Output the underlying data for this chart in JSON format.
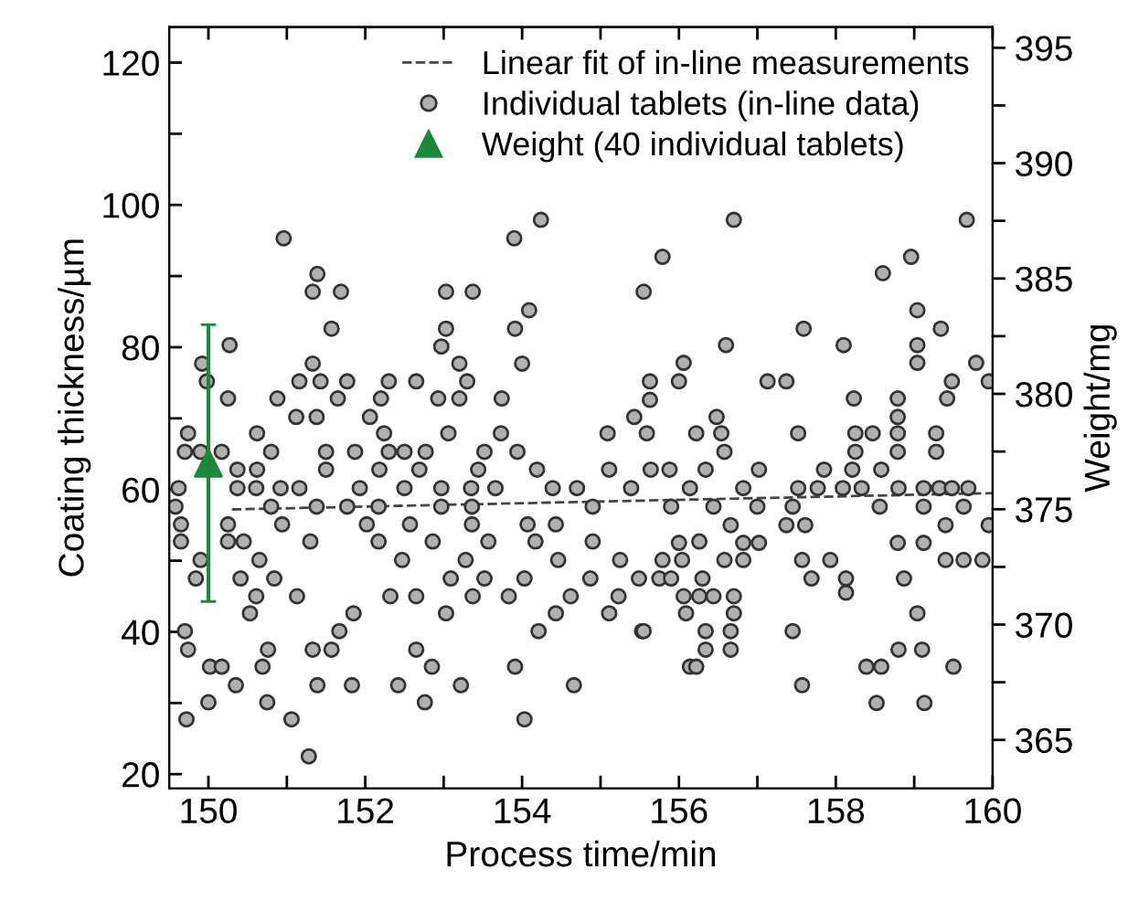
{
  "chart_data": {
    "type": "scatter",
    "xlabel": "Process time/min",
    "ylabel": "Coating thickness/µm",
    "y2label": "Weight/mg",
    "xlim": [
      149.5,
      160
    ],
    "ylim": [
      18,
      125
    ],
    "y2lim": [
      362.9,
      395.9
    ],
    "xticks": [
      150,
      {
        "value": 151,
        "label": null
      },
      152,
      {
        "value": 153,
        "label": null
      },
      154,
      {
        "value": 155,
        "label": null
      },
      156,
      {
        "value": 157,
        "label": null
      },
      158,
      {
        "value": 159,
        "label": null
      },
      160
    ],
    "yticks": [
      20,
      {
        "value": 30,
        "label": null
      },
      40,
      {
        "value": 50,
        "label": null
      },
      60,
      {
        "value": 70,
        "label": null
      },
      80,
      {
        "value": 90,
        "label": null
      },
      100,
      {
        "value": 110,
        "label": null
      },
      120
    ],
    "y2ticks": [
      365,
      {
        "value": 367.5,
        "label": null
      },
      370,
      {
        "value": 372.5,
        "label": null
      },
      375,
      {
        "value": 377.5,
        "label": null
      },
      380,
      {
        "value": 382.5,
        "label": null
      },
      385,
      {
        "value": 387.5,
        "label": null
      },
      390,
      {
        "value": 392.5,
        "label": null
      },
      395
    ],
    "grid": false,
    "legend": "top right",
    "series": [
      {
        "name": "Linear fit of in-line measurements",
        "type": "line",
        "line_style": "dashed",
        "marker": "none",
        "color": "#444444",
        "x": [
          150.3,
          160
        ],
        "values": [
          57.2,
          59.5
        ]
      },
      {
        "name": "Individual tablets (in-line data)",
        "marker": "circle",
        "color": "#b0b0b0",
        "x": [
          150.96,
          154.24,
          153.9,
          151.39,
          151.33,
          151.69,
          153.03,
          153.37,
          154.09,
          151.57,
          153.03,
          153.91,
          152.97,
          150.27,
          149.92,
          149.98,
          153.2,
          154.0,
          151.33,
          151.16,
          151.43,
          151.77,
          152.3,
          152.65,
          153.3,
          150.25,
          150.88,
          151.65,
          152.2,
          152.93,
          153.2,
          153.74,
          151.12,
          151.38,
          152.06,
          149.74,
          150.62,
          152.24,
          153.06,
          153.73,
          155.09,
          149.7,
          149.9,
          150.17,
          150.8,
          151.5,
          151.87,
          152.3,
          152.5,
          152.77,
          153.52,
          153.94,
          150.37,
          150.62,
          151.5,
          152.18,
          152.69,
          153.44,
          154.19,
          155.11,
          149.62,
          150.37,
          150.61,
          150.92,
          151.16,
          151.93,
          152.5,
          152.97,
          153.35,
          153.66,
          154.39,
          154.7,
          155.39,
          149.58,
          150.8,
          151.38,
          151.77,
          152.17,
          152.97,
          153.36,
          154.9,
          149.65,
          150.25,
          150.94,
          152.02,
          152.57,
          153.36,
          154.07,
          154.43,
          149.65,
          150.25,
          150.45,
          151.3,
          152.17,
          152.86,
          153.57,
          154.17,
          154.9,
          149.9,
          150.65,
          152.47,
          153.28,
          154.46,
          155.25,
          149.84,
          150.41,
          150.84,
          153.09,
          153.52,
          154.03,
          154.87,
          155.49,
          150.61,
          151.13,
          152.32,
          152.65,
          153.37,
          153.83,
          154.62,
          155.23,
          150.53,
          151.85,
          153.03,
          154.43,
          155.11,
          151.67,
          149.7,
          154.21,
          155.53,
          149.74,
          150.76,
          151.33,
          151.57,
          152.65,
          150.02,
          150.17,
          150.69,
          152.85,
          153.91,
          150.35,
          151.39,
          151.83,
          152.42,
          153.22,
          154.66,
          150.0,
          150.75,
          152.76,
          149.72,
          151.06,
          154.03,
          151.28,
          156.7,
          159.67,
          155.79,
          158.96,
          155.55,
          158.6,
          159.04,
          157.59,
          159.34,
          156.6,
          158.1,
          159.04,
          159.04,
          156.06,
          159.79,
          157.13,
          157.37,
          155.63,
          159.48,
          159.95,
          156.0,
          155.63,
          158.23,
          158.79,
          159.42,
          155.43,
          156.48,
          158.79,
          155.59,
          156.22,
          156.54,
          157.52,
          158.25,
          158.47,
          158.79,
          159.28,
          156.58,
          158.25,
          158.79,
          159.28,
          155.64,
          155.88,
          156.34,
          157.02,
          157.85,
          158.21,
          158.58,
          159.69,
          156.14,
          156.82,
          157.52,
          157.77,
          158.09,
          158.33,
          158.8,
          159.12,
          159.32,
          159.48,
          155.9,
          156.44,
          157.0,
          157.45,
          158.56,
          159.12,
          159.63,
          156.66,
          157.37,
          157.61,
          159.4,
          159.95,
          156.0,
          156.82,
          157.02,
          158.79,
          159.12,
          155.79,
          156.04,
          156.26,
          156.58,
          156.82,
          157.57,
          157.93,
          159.4,
          159.63,
          159.87,
          155.75,
          155.9,
          156.3,
          157.69,
          158.13,
          158.87,
          156.06,
          156.26,
          156.44,
          156.7,
          158.13,
          156.09,
          156.7,
          159.04,
          155.55,
          156.34,
          156.66,
          157.45,
          156.34,
          156.66,
          158.8,
          159.1,
          156.14,
          156.22,
          158.39,
          158.58,
          159.5,
          157.57,
          158.52,
          159.13
        ],
        "values": [
          95.3,
          97.9,
          95.3,
          90.3,
          87.8,
          87.8,
          87.8,
          87.8,
          85.2,
          82.6,
          82.6,
          82.6,
          80.1,
          80.3,
          77.7,
          75.2,
          77.7,
          77.7,
          77.7,
          75.2,
          75.2,
          75.2,
          75.2,
          75.2,
          75.2,
          72.8,
          72.8,
          72.8,
          72.8,
          72.8,
          72.8,
          72.8,
          70.2,
          70.2,
          70.2,
          67.9,
          67.9,
          67.9,
          67.9,
          67.9,
          67.9,
          65.3,
          65.3,
          65.3,
          65.3,
          65.3,
          65.3,
          65.3,
          65.3,
          65.3,
          65.3,
          65.3,
          62.8,
          62.8,
          62.8,
          62.8,
          62.8,
          62.8,
          62.8,
          62.8,
          60.2,
          60.2,
          60.2,
          60.2,
          60.2,
          60.2,
          60.2,
          60.2,
          60.2,
          60.2,
          60.2,
          60.2,
          60.2,
          57.6,
          57.6,
          57.6,
          57.6,
          57.6,
          57.6,
          57.6,
          57.6,
          55.1,
          55.1,
          55.1,
          55.1,
          55.1,
          55.1,
          55.1,
          55.1,
          52.7,
          52.7,
          52.7,
          52.7,
          52.7,
          52.7,
          52.7,
          52.7,
          52.7,
          50.1,
          50.1,
          50.1,
          50.1,
          50.1,
          50.1,
          47.5,
          47.5,
          47.5,
          47.5,
          47.5,
          47.5,
          47.5,
          47.5,
          45.0,
          45.0,
          45.0,
          45.0,
          45.0,
          45.0,
          45.0,
          45.0,
          42.6,
          42.6,
          42.6,
          42.6,
          42.6,
          40.1,
          40.1,
          40.1,
          40.1,
          37.5,
          37.5,
          37.5,
          37.5,
          37.5,
          35.1,
          35.1,
          35.1,
          35.1,
          35.1,
          32.5,
          32.5,
          32.5,
          32.5,
          32.5,
          32.5,
          30.1,
          30.1,
          30.1,
          27.7,
          27.7,
          27.7,
          22.5,
          97.9,
          97.9,
          92.7,
          92.7,
          87.8,
          90.4,
          85.2,
          82.6,
          82.6,
          80.3,
          80.3,
          80.3,
          77.8,
          77.8,
          77.8,
          75.2,
          75.2,
          75.2,
          75.2,
          75.2,
          75.2,
          72.6,
          72.8,
          72.8,
          72.8,
          70.2,
          70.2,
          70.2,
          67.9,
          67.9,
          67.9,
          67.9,
          67.9,
          67.9,
          67.9,
          67.9,
          65.3,
          65.3,
          65.3,
          65.3,
          62.8,
          62.8,
          62.8,
          62.8,
          62.8,
          62.8,
          62.8,
          60.2,
          60.2,
          60.2,
          60.2,
          60.2,
          60.2,
          60.2,
          60.2,
          60.2,
          60.2,
          60.2,
          57.6,
          57.6,
          57.6,
          57.6,
          57.6,
          57.6,
          57.6,
          55.0,
          55.0,
          55.0,
          55.0,
          55.0,
          52.5,
          52.5,
          52.5,
          52.5,
          52.5,
          50.1,
          50.1,
          52.7,
          50.1,
          50.1,
          50.1,
          50.1,
          50.1,
          50.1,
          50.1,
          47.5,
          47.5,
          47.5,
          47.5,
          47.5,
          47.5,
          45.0,
          45.0,
          45.0,
          45.0,
          45.5,
          42.6,
          42.6,
          42.6,
          40.1,
          40.1,
          40.1,
          40.1,
          37.5,
          37.5,
          37.5,
          37.5,
          35.1,
          35.1,
          35.1,
          35.1,
          35.1,
          32.5,
          30.0,
          30.0
        ]
      },
      {
        "name": "Weight (40 individual tablets)",
        "marker": "triangle",
        "color": "#1a8a3a",
        "axis": "y2",
        "x": [
          150
        ],
        "values": [
          377
        ],
        "errors": [
          6
        ]
      }
    ]
  }
}
